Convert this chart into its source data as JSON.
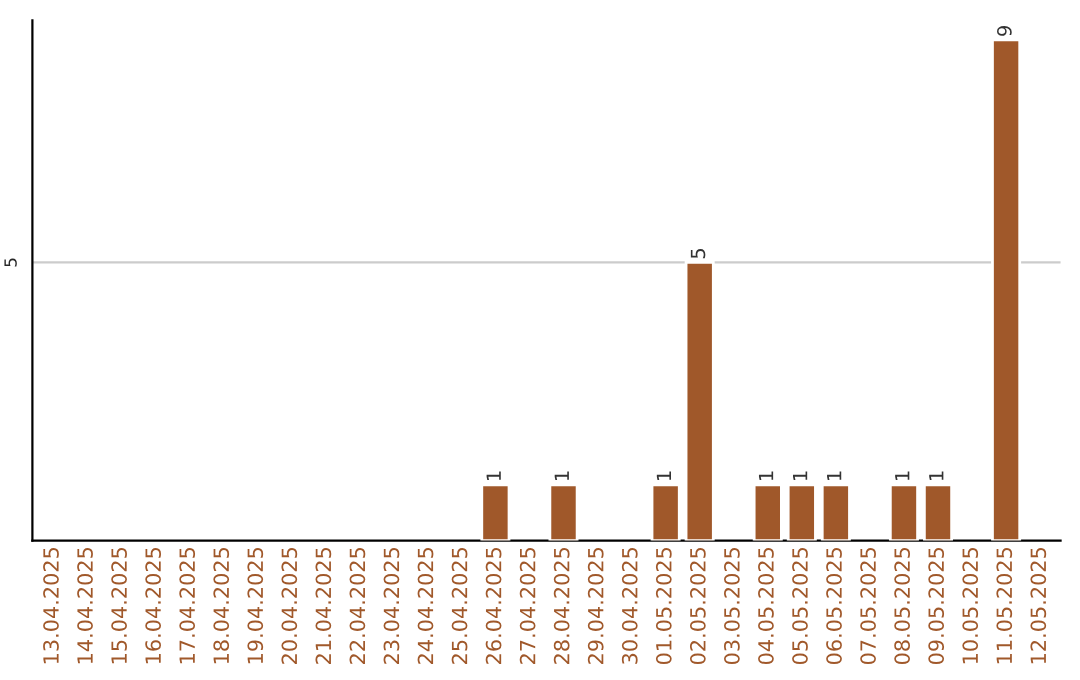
{
  "chart_data": {
    "type": "bar",
    "categories": [
      "13.04.2025",
      "14.04.2025",
      "15.04.2025",
      "16.04.2025",
      "17.04.2025",
      "18.04.2025",
      "19.04.2025",
      "20.04.2025",
      "21.04.2025",
      "22.04.2025",
      "23.04.2025",
      "24.04.2025",
      "25.04.2025",
      "26.04.2025",
      "27.04.2025",
      "28.04.2025",
      "29.04.2025",
      "30.04.2025",
      "01.05.2025",
      "02.05.2025",
      "03.05.2025",
      "04.05.2025",
      "05.05.2025",
      "06.05.2025",
      "07.05.2025",
      "08.05.2025",
      "09.05.2025",
      "10.05.2025",
      "11.05.2025",
      "12.05.2025"
    ],
    "values": [
      null,
      null,
      null,
      null,
      null,
      null,
      null,
      null,
      null,
      null,
      null,
      null,
      null,
      1,
      null,
      1,
      null,
      null,
      1,
      5,
      null,
      1,
      1,
      1,
      null,
      1,
      1,
      null,
      9,
      null
    ],
    "data_labels": true,
    "color": "#a0582a",
    "ylim": [
      0,
      9.35
    ],
    "ref_lines": [
      {
        "axis": "y",
        "value": 5,
        "label": "5",
        "color": "#cccccc"
      }
    ]
  }
}
